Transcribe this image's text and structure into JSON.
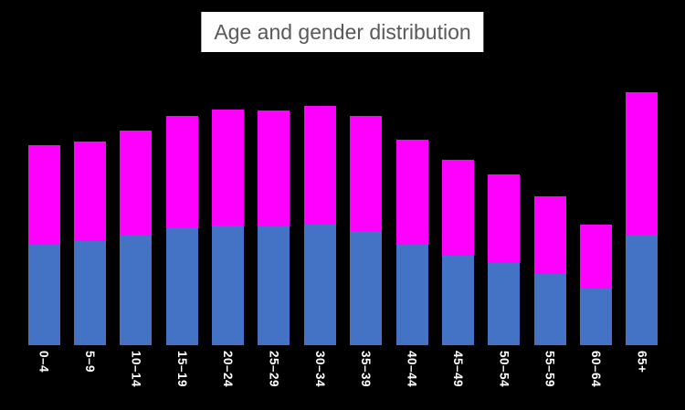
{
  "page": {
    "background_color": "#000000"
  },
  "chart_data": {
    "type": "bar",
    "stacked": true,
    "title": "Age and gender distribution",
    "title_bg_color": "#ffffff",
    "title_text_color": "#595959",
    "categories": [
      "0–4",
      "5–9",
      "10–14",
      "15–19",
      "20–24",
      "25–29",
      "30–34",
      "35–39",
      "40–44",
      "45–49",
      "50–54",
      "55–59",
      "60–64",
      "65+"
    ],
    "series": [
      {
        "name": "bottom-blue-segment",
        "color": "#4472c4",
        "values": [
          3.5,
          3.63,
          3.82,
          4.07,
          4.17,
          4.14,
          4.2,
          3.98,
          3.5,
          3.12,
          2.86,
          2.48,
          1.97,
          3.82
        ]
      },
      {
        "name": "top-magenta-segment",
        "color": "#ff00ff",
        "values": [
          3.47,
          3.47,
          3.66,
          3.92,
          4.04,
          4.05,
          4.14,
          4.0,
          3.65,
          3.34,
          3.09,
          2.7,
          2.24,
          5.0
        ]
      }
    ],
    "xlabel": "",
    "ylabel": "",
    "x_tick_label_color": "#ffffff",
    "x_tick_label_rotation_deg": 90,
    "axes_visible": false,
    "grid": false,
    "legend": "none",
    "values_estimated": true
  }
}
